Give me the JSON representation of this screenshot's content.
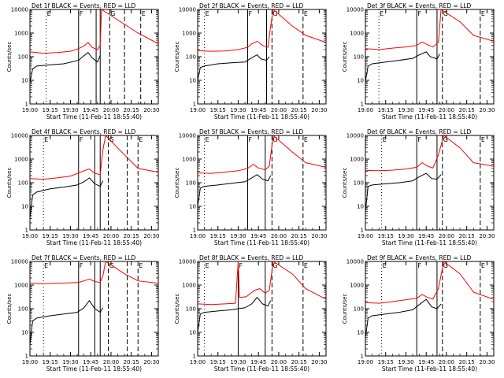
{
  "figure": {
    "ylabel": "Counts/sec",
    "xlabel_prefix": "Start Time (11-Feb-11 18:55:40)",
    "title_suffix": "BLACK = Events, RED = LLD",
    "x_tick_labels": [
      "19:00",
      "19:15",
      "19:30",
      "19:45",
      "20:00",
      "20:15",
      "20:30"
    ],
    "y_tick_labels": [
      "1",
      "10",
      "100",
      "1000",
      "10000"
    ],
    "marker_labels": [
      "E",
      "F",
      "G",
      "E"
    ],
    "colors": {
      "events": "#000000",
      "lld": "#ff0000",
      "axes": "#000000"
    }
  },
  "chart_data": [
    {
      "type": "line",
      "title": "Det 1f",
      "ylog": true,
      "ylim": [
        1,
        10000
      ],
      "xlim": [
        "19:00",
        "20:35"
      ],
      "dotted": [
        "19:12"
      ],
      "solid": [
        "19:36",
        "19:49",
        "19:52"
      ],
      "dashed": [
        "19:59",
        "20:10",
        "20:22"
      ],
      "series": [
        {
          "name": "BLACK = Events",
          "x": [
            "19:00",
            "19:02",
            "19:05",
            "19:15",
            "19:25",
            "19:36",
            "19:40",
            "19:43",
            "19:46",
            "19:50",
            "19:52"
          ],
          "values": [
            8,
            30,
            40,
            45,
            50,
            70,
            110,
            150,
            90,
            60,
            110
          ]
        },
        {
          "name": "RED = LLD",
          "x": [
            "19:00",
            "19:10",
            "19:20",
            "19:30",
            "19:36",
            "19:40",
            "19:43",
            "19:46",
            "19:50",
            "19:52",
            "19:53",
            "20:20",
            "20:30",
            "20:35"
          ],
          "values": [
            160,
            140,
            150,
            170,
            220,
            280,
            400,
            250,
            200,
            300,
            10000,
            1000,
            500,
            350
          ]
        }
      ]
    },
    {
      "type": "line",
      "title": "Det 2f",
      "ylog": true,
      "ylim": [
        1,
        10000
      ],
      "xlim": [
        "19:00",
        "20:35"
      ],
      "dotted": [
        "19:05"
      ],
      "solid": [
        "19:37",
        "19:51"
      ],
      "dashed": [
        "19:55",
        "20:18"
      ],
      "series": [
        {
          "name": "BLACK = Events",
          "x": [
            "19:00",
            "19:02",
            "19:05",
            "19:15",
            "19:25",
            "19:35",
            "19:40",
            "19:44",
            "19:47",
            "19:51",
            "19:53"
          ],
          "values": [
            10,
            35,
            40,
            50,
            55,
            60,
            90,
            120,
            80,
            70,
            100
          ]
        },
        {
          "name": "RED = LLD",
          "x": [
            "19:00",
            "19:10",
            "19:20",
            "19:30",
            "19:37",
            "19:40",
            "19:44",
            "19:48",
            "19:52",
            "19:54",
            "19:56",
            "20:10",
            "20:20",
            "20:35"
          ],
          "values": [
            180,
            170,
            175,
            200,
            250,
            350,
            450,
            300,
            250,
            2000,
            10000,
            2000,
            800,
            400
          ]
        }
      ]
    },
    {
      "type": "line",
      "title": "Det 3f",
      "ylog": true,
      "ylim": [
        1,
        10000
      ],
      "xlim": [
        "19:00",
        "20:35"
      ],
      "dotted": [
        "19:10"
      ],
      "solid": [
        "19:38",
        "19:53"
      ],
      "dashed": [
        "19:57",
        "20:25"
      ],
      "series": [
        {
          "name": "BLACK = Events",
          "x": [
            "19:00",
            "19:02",
            "19:05",
            "19:15",
            "19:25",
            "19:35",
            "19:40",
            "19:45",
            "19:48",
            "19:53",
            "19:55"
          ],
          "values": [
            9,
            40,
            50,
            60,
            70,
            85,
            120,
            160,
            100,
            80,
            130
          ]
        },
        {
          "name": "RED = LLD",
          "x": [
            "19:00",
            "19:10",
            "19:20",
            "19:30",
            "19:38",
            "19:42",
            "19:46",
            "19:50",
            "19:54",
            "19:56",
            "20:10",
            "20:20",
            "20:35"
          ],
          "values": [
            220,
            200,
            230,
            260,
            300,
            420,
            320,
            260,
            400,
            10000,
            3000,
            800,
            450
          ]
        }
      ]
    },
    {
      "type": "line",
      "title": "Det 4f",
      "ylog": true,
      "ylim": [
        1,
        10000
      ],
      "xlim": [
        "19:00",
        "20:35"
      ],
      "dotted": [
        "19:10"
      ],
      "solid": [
        "19:36",
        "19:48",
        "19:52"
      ],
      "dashed": [
        "19:58",
        "20:12",
        "20:20"
      ],
      "series": [
        {
          "name": "BLACK = Events",
          "x": [
            "19:00",
            "19:02",
            "19:05",
            "19:15",
            "19:25",
            "19:35",
            "19:40",
            "19:44",
            "19:48",
            "19:52",
            "19:54"
          ],
          "values": [
            3,
            30,
            40,
            55,
            65,
            80,
            110,
            160,
            90,
            70,
            120
          ]
        },
        {
          "name": "RED = LLD",
          "x": [
            "19:00",
            "19:10",
            "19:20",
            "19:30",
            "19:36",
            "19:40",
            "19:44",
            "19:48",
            "19:52",
            "19:54",
            "19:56",
            "20:10",
            "20:20",
            "20:35"
          ],
          "values": [
            150,
            140,
            160,
            190,
            260,
            320,
            380,
            250,
            220,
            2500,
            10000,
            1500,
            400,
            280
          ]
        }
      ]
    },
    {
      "type": "line",
      "title": "Det 5f",
      "ylog": true,
      "ylim": [
        1,
        10000
      ],
      "xlim": [
        "19:00",
        "20:35"
      ],
      "dotted": [
        "19:05"
      ],
      "solid": [
        "19:37",
        "19:50"
      ],
      "dashed": [
        "19:55",
        "20:18"
      ],
      "series": [
        {
          "name": "BLACK = Events",
          "x": [
            "19:00",
            "19:02",
            "19:05",
            "19:15",
            "19:25",
            "19:35",
            "19:40",
            "19:44",
            "19:48",
            "19:52",
            "19:54"
          ],
          "values": [
            10,
            60,
            70,
            80,
            95,
            110,
            160,
            220,
            140,
            120,
            200
          ]
        },
        {
          "name": "RED = LLD",
          "x": [
            "19:00",
            "19:10",
            "19:20",
            "19:30",
            "19:37",
            "19:41",
            "19:45",
            "19:50",
            "19:53",
            "19:56",
            "20:10",
            "20:20",
            "20:35"
          ],
          "values": [
            260,
            250,
            280,
            320,
            400,
            600,
            420,
            350,
            500,
            10000,
            2000,
            700,
            450
          ]
        }
      ]
    },
    {
      "type": "line",
      "title": "Det 6f",
      "ylog": true,
      "ylim": [
        1,
        10000
      ],
      "xlim": [
        "19:00",
        "20:35"
      ],
      "dotted": [
        "19:12"
      ],
      "solid": [
        "19:38",
        "19:53"
      ],
      "dashed": [
        "19:57",
        "20:25"
      ],
      "series": [
        {
          "name": "BLACK = Events",
          "x": [
            "19:00",
            "19:02",
            "19:05",
            "19:15",
            "19:25",
            "19:35",
            "19:40",
            "19:45",
            "19:49",
            "19:53",
            "19:56"
          ],
          "values": [
            6,
            70,
            80,
            90,
            100,
            120,
            180,
            250,
            150,
            140,
            220
          ]
        },
        {
          "name": "RED = LLD",
          "x": [
            "19:00",
            "19:10",
            "19:20",
            "19:30",
            "19:38",
            "19:42",
            "19:46",
            "19:50",
            "19:54",
            "19:58",
            "20:10",
            "20:20",
            "20:35"
          ],
          "values": [
            330,
            320,
            340,
            380,
            450,
            700,
            500,
            420,
            1500,
            10000,
            3000,
            700,
            500
          ]
        }
      ]
    },
    {
      "type": "line",
      "title": "Det 7f",
      "ylog": true,
      "ylim": [
        1,
        10000
      ],
      "xlim": [
        "19:00",
        "20:35"
      ],
      "dotted": [
        "19:10"
      ],
      "solid": [
        "19:36",
        "19:48",
        "19:52"
      ],
      "dashed": [
        "19:58",
        "20:12",
        "20:20"
      ],
      "series": [
        {
          "name": "BLACK = Events",
          "x": [
            "19:00",
            "19:02",
            "19:05",
            "19:15",
            "19:25",
            "19:35",
            "19:40",
            "19:44",
            "19:48",
            "19:52",
            "19:54"
          ],
          "values": [
            3,
            30,
            40,
            50,
            60,
            70,
            110,
            220,
            100,
            70,
            110
          ]
        },
        {
          "name": "RED = LLD",
          "x": [
            "19:00",
            "19:10",
            "19:20",
            "19:30",
            "19:36",
            "19:40",
            "19:44",
            "19:48",
            "19:52",
            "19:54",
            "19:56",
            "20:10",
            "20:20",
            "20:35"
          ],
          "values": [
            1200,
            1150,
            1200,
            1250,
            1300,
            1500,
            1800,
            1400,
            1300,
            2500,
            10000,
            3000,
            1500,
            1200
          ]
        }
      ]
    },
    {
      "type": "line",
      "title": "Det 8f",
      "ylog": true,
      "ylim": [
        1,
        10000
      ],
      "xlim": [
        "19:00",
        "20:35"
      ],
      "dotted": [
        "19:05"
      ],
      "solid": [
        "19:30",
        "19:50"
      ],
      "dashed": [
        "19:55",
        "20:18"
      ],
      "series": [
        {
          "name": "BLACK = Events",
          "x": [
            "19:00",
            "19:02",
            "19:05",
            "19:15",
            "19:25",
            "19:30",
            "19:35",
            "19:40",
            "19:44",
            "19:48",
            "19:52",
            "19:54"
          ],
          "values": [
            10,
            60,
            70,
            80,
            90,
            100,
            110,
            160,
            300,
            160,
            130,
            220
          ]
        },
        {
          "name": "RED = LLD",
          "x": [
            "19:00",
            "19:10",
            "19:20",
            "19:28",
            "19:30",
            "19:31",
            "19:36",
            "19:42",
            "19:46",
            "19:50",
            "19:53",
            "19:56",
            "20:10",
            "20:20",
            "20:35"
          ],
          "values": [
            160,
            150,
            160,
            170,
            10000,
            300,
            320,
            600,
            700,
            450,
            600,
            10000,
            3000,
            700,
            250
          ]
        }
      ]
    },
    {
      "type": "line",
      "title": "Det 9f",
      "ylog": true,
      "ylim": [
        1,
        10000
      ],
      "xlim": [
        "19:00",
        "20:35"
      ],
      "dotted": [
        "19:12"
      ],
      "solid": [
        "19:38",
        "19:53"
      ],
      "dashed": [
        "19:57",
        "20:25"
      ],
      "series": [
        {
          "name": "BLACK = Events",
          "x": [
            "19:00",
            "19:02",
            "19:05",
            "19:15",
            "19:25",
            "19:35",
            "19:40",
            "19:45",
            "19:49",
            "19:53",
            "19:56"
          ],
          "values": [
            6,
            40,
            50,
            60,
            70,
            90,
            150,
            250,
            120,
            100,
            160
          ]
        },
        {
          "name": "RED = LLD",
          "x": [
            "19:00",
            "19:10",
            "19:20",
            "19:30",
            "19:38",
            "19:42",
            "19:46",
            "19:50",
            "19:54",
            "19:58",
            "20:10",
            "20:20",
            "20:35"
          ],
          "values": [
            180,
            170,
            200,
            240,
            280,
            400,
            300,
            260,
            700,
            10000,
            3000,
            500,
            250
          ]
        }
      ]
    }
  ]
}
